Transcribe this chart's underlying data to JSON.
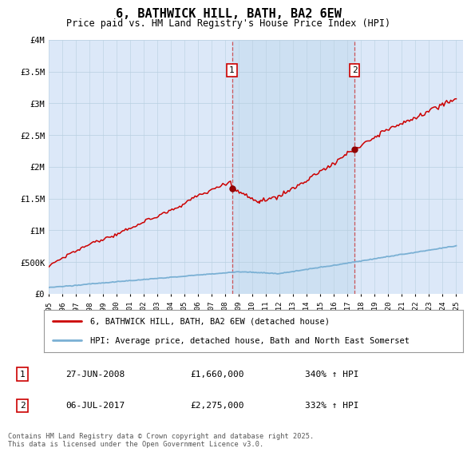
{
  "title": "6, BATHWICK HILL, BATH, BA2 6EW",
  "subtitle": "Price paid vs. HM Land Registry's House Price Index (HPI)",
  "ylim": [
    0,
    4000000
  ],
  "yticks": [
    0,
    500000,
    1000000,
    1500000,
    2000000,
    2500000,
    3000000,
    3500000,
    4000000
  ],
  "ytick_labels": [
    "£0",
    "£500K",
    "£1M",
    "£1.5M",
    "£2M",
    "£2.5M",
    "£3M",
    "£3.5M",
    "£4M"
  ],
  "xlim_start": 1995.0,
  "xlim_end": 2025.5,
  "background_color": "#dce8f8",
  "red_line_color": "#cc0000",
  "blue_line_color": "#7ab0d4",
  "marker1_x": 2008.49,
  "marker1_y": 1660000,
  "marker2_x": 2017.51,
  "marker2_y": 2275000,
  "marker1_date": "27-JUN-2008",
  "marker1_price": "£1,660,000",
  "marker1_hpi": "340% ↑ HPI",
  "marker2_date": "06-JUL-2017",
  "marker2_price": "£2,275,000",
  "marker2_hpi": "332% ↑ HPI",
  "legend_red": "6, BATHWICK HILL, BATH, BA2 6EW (detached house)",
  "legend_blue": "HPI: Average price, detached house, Bath and North East Somerset",
  "footer": "Contains HM Land Registry data © Crown copyright and database right 2025.\nThis data is licensed under the Open Government Licence v3.0."
}
